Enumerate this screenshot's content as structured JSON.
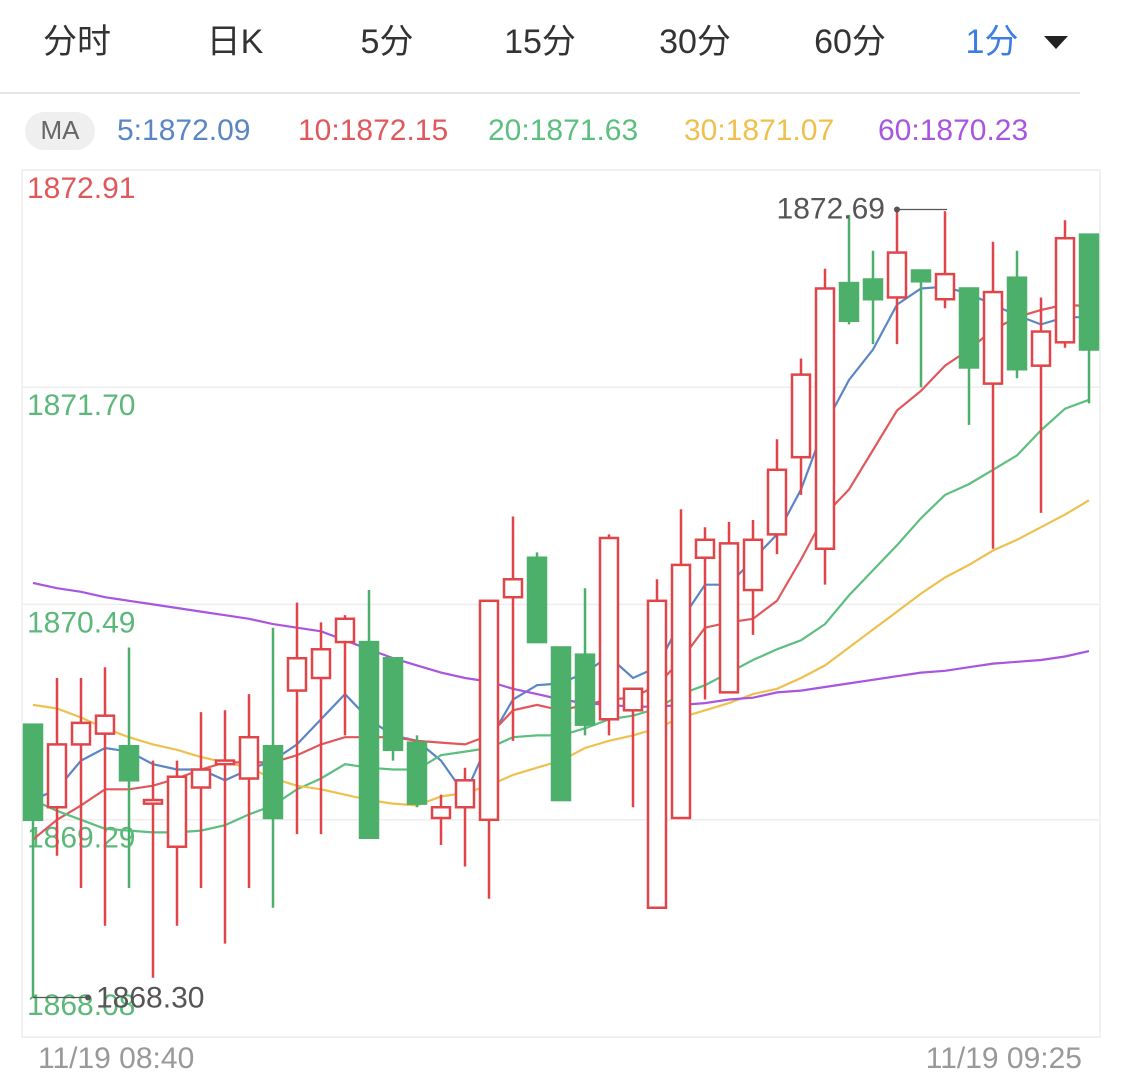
{
  "tabs": [
    "分时",
    "日K",
    "5分",
    "15分",
    "30分",
    "60分",
    "1分"
  ],
  "active_tab": 6,
  "chart_data": {
    "type": "candlestick",
    "legend_badge": "MA",
    "up_color": "#e0454a",
    "down_color": "#4caf6a",
    "ylim": [
      1868.08,
      1872.91
    ],
    "yticks": [
      1872.91,
      {
        "value": 1871.7,
        "label": "1871.70"
      },
      1870.49,
      1869.29,
      1868.08
    ],
    "ytick_colors": [
      "#e0585b",
      "#5cb87a",
      "#5cb87a",
      "#5cb87a",
      "#5cb87a"
    ],
    "grid": true,
    "x_labels": [
      "11/19 08:40",
      "11/19 09:25"
    ],
    "max_marker": 1872.69,
    "min_marker": {
      "value": 1868.3,
      "label": "1868.30"
    },
    "open": [
      1869.82,
      1869.36,
      1869.71,
      1869.77,
      1869.7,
      1869.38,
      1869.14,
      1869.47,
      1869.6,
      1869.52,
      1869.7,
      1870.01,
      1870.08,
      1870.28,
      1870.28,
      1870.19,
      1869.72,
      1869.3,
      1869.36,
      1869.29,
      1870.53,
      1870.75,
      1870.25,
      1870.21,
      1869.85,
      1869.9,
      1868.8,
      1869.3,
      1870.75,
      1870.0,
      1870.57,
      1870.88,
      1871.31,
      1870.8,
      1872.28,
      1872.3,
      1872.2,
      1872.35,
      1872.19,
      1872.25,
      1871.72,
      1872.31,
      1871.82,
      1871.95,
      1872.55
    ],
    "high": [
      1869.82,
      1870.08,
      1870.08,
      1870.14,
      1870.25,
      1869.62,
      1869.62,
      1869.89,
      1869.9,
      1869.99,
      1870.36,
      1870.5,
      1870.39,
      1870.43,
      1870.57,
      1870.19,
      1869.76,
      1869.43,
      1869.58,
      1870.51,
      1870.98,
      1870.78,
      1870.25,
      1870.58,
      1870.88,
      1870.02,
      1870.63,
      1871.02,
      1870.92,
      1870.95,
      1870.96,
      1871.41,
      1871.86,
      1872.36,
      1872.66,
      1872.46,
      1872.69,
      1872.35,
      1872.68,
      1872.25,
      1872.51,
      1872.46,
      1872.2,
      1872.63,
      1872.55
    ],
    "low": [
      1868.3,
      1869.09,
      1868.91,
      1868.7,
      1868.91,
      1868.41,
      1868.7,
      1868.91,
      1868.6,
      1868.91,
      1868.8,
      1869.21,
      1869.21,
      1869.76,
      1869.19,
      1869.62,
      1869.36,
      1869.15,
      1869.03,
      1868.85,
      1869.73,
      1870.28,
      1869.4,
      1869.76,
      1869.76,
      1869.36,
      1868.8,
      1869.3,
      1869.96,
      1870.0,
      1870.32,
      1870.77,
      1871.1,
      1870.6,
      1872.05,
      1871.94,
      1871.94,
      1871.7,
      1872.14,
      1871.49,
      1870.8,
      1871.75,
      1871.0,
      1871.92,
      1871.61
    ],
    "close": [
      1869.29,
      1869.71,
      1869.83,
      1869.87,
      1869.51,
      1869.4,
      1869.53,
      1869.57,
      1869.62,
      1869.75,
      1869.3,
      1870.19,
      1870.24,
      1870.41,
      1869.19,
      1869.68,
      1869.38,
      1869.36,
      1869.51,
      1870.51,
      1870.63,
      1870.28,
      1869.4,
      1869.82,
      1870.86,
      1870.02,
      1870.51,
      1870.71,
      1870.85,
      1870.83,
      1870.85,
      1871.24,
      1871.77,
      1872.25,
      1872.07,
      1872.19,
      1872.45,
      1872.29,
      1872.33,
      1871.81,
      1872.23,
      1871.8,
      1872.01,
      1872.53,
      1871.91
    ],
    "series": [
      {
        "name": "5:1872.09",
        "color": "#5b86c5",
        "values": [
          1869.4,
          1869.46,
          1869.62,
          1869.69,
          1869.67,
          1869.6,
          1869.57,
          1869.57,
          1869.51,
          1869.57,
          1869.62,
          1869.71,
          1869.85,
          1869.99,
          1869.85,
          1869.76,
          1869.73,
          1869.62,
          1869.43,
          1869.73,
          1869.96,
          1870.04,
          1870.05,
          1870.11,
          1870.2,
          1870.08,
          1870.14,
          1870.4,
          1870.6,
          1870.6,
          1870.74,
          1870.88,
          1871.13,
          1871.49,
          1871.74,
          1871.91,
          1872.16,
          1872.25,
          1872.26,
          1872.22,
          1872.16,
          1872.1,
          1872.05,
          1872.09,
          1872.09
        ]
      },
      {
        "name": "10:1872.15",
        "color": "#e0585b",
        "values": [
          1869.18,
          1869.29,
          1869.37,
          1869.46,
          1869.46,
          1869.48,
          1869.52,
          1869.57,
          1869.61,
          1869.61,
          1869.61,
          1869.65,
          1869.71,
          1869.75,
          1869.75,
          1869.75,
          1869.73,
          1869.72,
          1869.71,
          1869.76,
          1869.9,
          1869.93,
          1869.9,
          1869.93,
          1869.96,
          1869.97,
          1870.04,
          1870.18,
          1870.36,
          1870.39,
          1870.41,
          1870.51,
          1870.74,
          1870.99,
          1871.13,
          1871.35,
          1871.57,
          1871.68,
          1871.82,
          1871.91,
          1872.02,
          1872.09,
          1872.13,
          1872.16,
          1872.15
        ]
      },
      {
        "name": "20:1871.63",
        "color": "#5cbf7f",
        "values": [
          1869.4,
          1869.34,
          1869.29,
          1869.24,
          1869.23,
          1869.22,
          1869.22,
          1869.23,
          1869.26,
          1869.32,
          1869.37,
          1869.46,
          1869.52,
          1869.6,
          1869.58,
          1869.57,
          1869.57,
          1869.65,
          1869.67,
          1869.69,
          1869.75,
          1869.76,
          1869.76,
          1869.8,
          1869.85,
          1869.87,
          1869.91,
          1869.99,
          1870.04,
          1870.11,
          1870.18,
          1870.24,
          1870.29,
          1870.38,
          1870.54,
          1870.68,
          1870.82,
          1870.97,
          1871.1,
          1871.16,
          1871.24,
          1871.32,
          1871.46,
          1871.58,
          1871.63
        ]
      },
      {
        "name": "30:1871.07",
        "color": "#efc04e",
        "values": [
          1869.93,
          1869.91,
          1869.86,
          1869.8,
          1869.75,
          1869.71,
          1869.68,
          1869.64,
          1869.61,
          1869.58,
          1869.52,
          1869.48,
          1869.46,
          1869.43,
          1869.4,
          1869.38,
          1869.37,
          1869.42,
          1869.44,
          1869.48,
          1869.54,
          1869.58,
          1869.62,
          1869.69,
          1869.73,
          1869.76,
          1869.8,
          1869.86,
          1869.9,
          1869.94,
          1869.99,
          1870.02,
          1870.08,
          1870.15,
          1870.25,
          1870.35,
          1870.45,
          1870.55,
          1870.64,
          1870.71,
          1870.79,
          1870.85,
          1870.92,
          1870.99,
          1871.07
        ]
      },
      {
        "name": "60:1870.23",
        "color": "#a855e0",
        "values": [
          1870.61,
          1870.58,
          1870.56,
          1870.53,
          1870.51,
          1870.49,
          1870.47,
          1870.45,
          1870.43,
          1870.41,
          1870.38,
          1870.36,
          1870.34,
          1870.29,
          1870.24,
          1870.19,
          1870.15,
          1870.11,
          1870.08,
          1870.06,
          1870.02,
          1869.99,
          1869.96,
          1869.94,
          1869.93,
          1869.92,
          1869.92,
          1869.93,
          1869.94,
          1869.96,
          1869.97,
          1870.0,
          1870.01,
          1870.03,
          1870.05,
          1870.07,
          1870.09,
          1870.11,
          1870.12,
          1870.14,
          1870.16,
          1870.17,
          1870.18,
          1870.2,
          1870.23
        ]
      }
    ]
  }
}
